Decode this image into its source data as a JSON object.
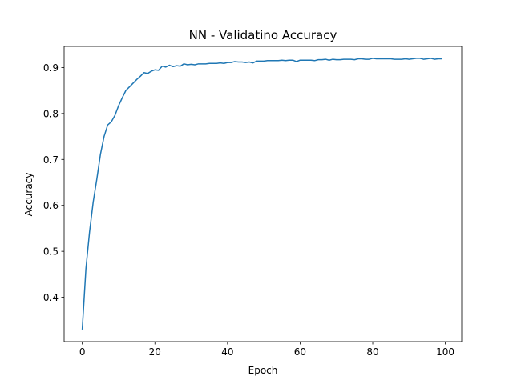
{
  "chart_data": {
    "type": "line",
    "title": "NN - Validatino Accuracy",
    "xlabel": "Epoch",
    "ylabel": "Accuracy",
    "xlim": [
      -5,
      104.5
    ],
    "ylim": [
      0.3035,
      0.946
    ],
    "xticks": [
      0,
      20,
      40,
      60,
      80,
      100
    ],
    "yticks": [
      0.4,
      0.5,
      0.6,
      0.7,
      0.8,
      0.9
    ],
    "xtick_labels": [
      "0",
      "20",
      "40",
      "60",
      "80",
      "100"
    ],
    "ytick_labels": [
      "0.4",
      "0.5",
      "0.6",
      "0.7",
      "0.8",
      "0.9"
    ],
    "grid": false,
    "legend": "none",
    "series": [
      {
        "color": "#1f77b4",
        "x": [
          0,
          1,
          2,
          3,
          4,
          5,
          6,
          7,
          8,
          9,
          10,
          11,
          12,
          13,
          14,
          15,
          16,
          17,
          18,
          19,
          20,
          21,
          22,
          23,
          24,
          25,
          26,
          27,
          28,
          29,
          30,
          31,
          32,
          33,
          34,
          35,
          36,
          37,
          38,
          39,
          40,
          41,
          42,
          43,
          44,
          45,
          46,
          47,
          48,
          49,
          50,
          51,
          52,
          53,
          54,
          55,
          56,
          57,
          58,
          59,
          60,
          61,
          62,
          63,
          64,
          65,
          66,
          67,
          68,
          69,
          70,
          71,
          72,
          73,
          74,
          75,
          76,
          77,
          78,
          79,
          80,
          81,
          82,
          83,
          84,
          85,
          86,
          87,
          88,
          89,
          90,
          91,
          92,
          93,
          94,
          95,
          96,
          97,
          98,
          99
        ],
        "values": [
          0.331,
          0.462,
          0.542,
          0.607,
          0.657,
          0.711,
          0.75,
          0.775,
          0.782,
          0.796,
          0.817,
          0.834,
          0.85,
          0.858,
          0.866,
          0.874,
          0.881,
          0.889,
          0.887,
          0.892,
          0.895,
          0.894,
          0.903,
          0.901,
          0.905,
          0.902,
          0.904,
          0.903,
          0.908,
          0.906,
          0.907,
          0.906,
          0.908,
          0.908,
          0.908,
          0.909,
          0.909,
          0.909,
          0.91,
          0.909,
          0.911,
          0.911,
          0.913,
          0.912,
          0.912,
          0.911,
          0.912,
          0.91,
          0.914,
          0.914,
          0.914,
          0.915,
          0.915,
          0.915,
          0.915,
          0.916,
          0.915,
          0.916,
          0.916,
          0.913,
          0.916,
          0.916,
          0.916,
          0.916,
          0.915,
          0.917,
          0.917,
          0.918,
          0.916,
          0.918,
          0.917,
          0.917,
          0.918,
          0.918,
          0.918,
          0.917,
          0.919,
          0.919,
          0.918,
          0.918,
          0.92,
          0.919,
          0.919,
          0.919,
          0.919,
          0.919,
          0.918,
          0.918,
          0.918,
          0.919,
          0.918,
          0.919,
          0.92,
          0.92,
          0.918,
          0.919,
          0.92,
          0.918,
          0.919,
          0.919
        ]
      }
    ]
  }
}
